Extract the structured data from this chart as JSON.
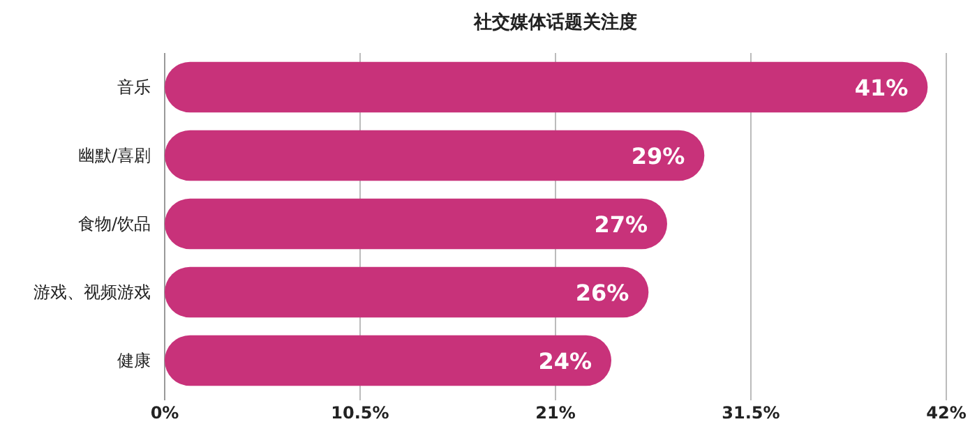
{
  "chart_data": {
    "type": "bar",
    "orientation": "horizontal",
    "title": "社交媒体话题关注度",
    "categories": [
      "音乐",
      "幽默/喜剧",
      "食物/饮品",
      "游戏、视频游戏",
      "健康"
    ],
    "values": [
      41,
      29,
      27,
      26,
      24
    ],
    "value_labels": [
      "41%",
      "29%",
      "27%",
      "26%",
      "24%"
    ],
    "color": "#c8327a",
    "xlim": [
      0,
      42
    ],
    "xticks": [
      {
        "value": 0,
        "label": "0%"
      },
      {
        "value": 10.5,
        "label": "10.5%"
      },
      {
        "value": 21,
        "label": "21%"
      },
      {
        "value": 31.5,
        "label": "31.5%"
      },
      {
        "value": 42,
        "label": "42%"
      }
    ],
    "grid": "x"
  }
}
